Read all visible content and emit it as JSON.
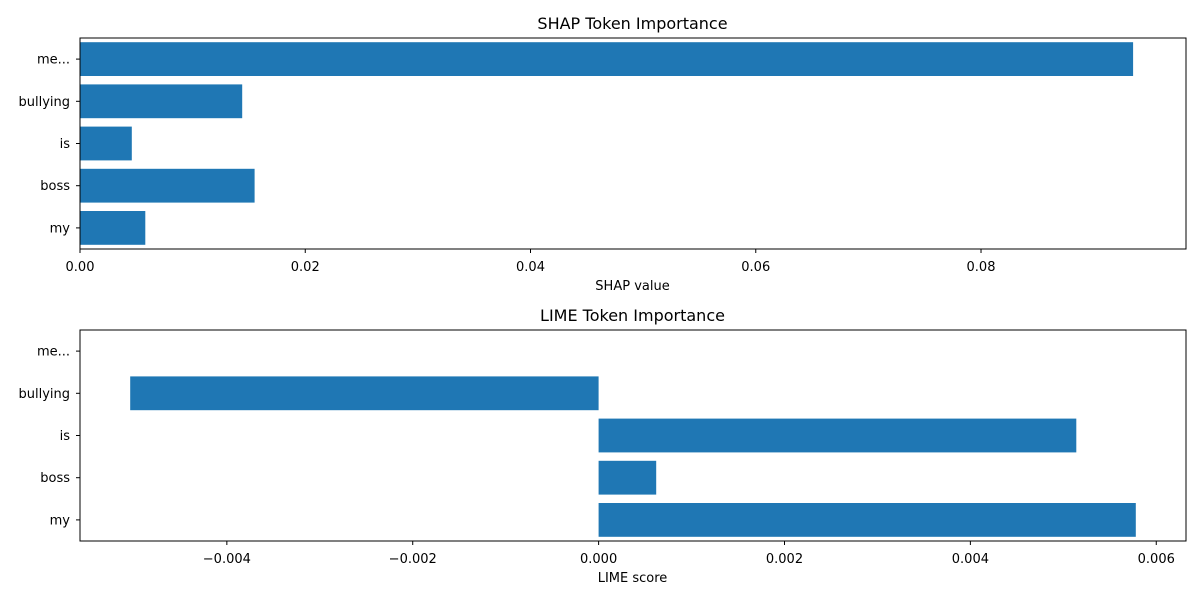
{
  "chart_data": [
    {
      "type": "bar",
      "orientation": "horizontal",
      "title": "SHAP Token Importance",
      "xlabel": "SHAP value",
      "ylabel": "",
      "categories": [
        "my",
        "boss",
        "is",
        "bullying",
        "me..."
      ],
      "values": [
        0.0058,
        0.0155,
        0.0046,
        0.0144,
        0.0935
      ],
      "xlim": [
        0,
        0.0982
      ],
      "xticks": [
        0.0,
        0.02,
        0.04,
        0.06,
        0.08
      ],
      "xtick_labels": [
        "0.00",
        "0.02",
        "0.04",
        "0.06",
        "0.08"
      ],
      "bar_color": "#1f77b4",
      "grid": false
    },
    {
      "type": "bar",
      "orientation": "horizontal",
      "title": "LIME Token Importance",
      "xlabel": "LIME score",
      "ylabel": "",
      "categories": [
        "my",
        "boss",
        "is",
        "bullying",
        "me..."
      ],
      "values": [
        0.00578,
        0.00062,
        0.00514,
        -0.00504,
        0.0
      ],
      "xlim": [
        -0.00558,
        0.00632
      ],
      "xticks": [
        -0.004,
        -0.002,
        0.0,
        0.002,
        0.004,
        0.006
      ],
      "xtick_labels": [
        "−0.004",
        "−0.002",
        "0.000",
        "0.002",
        "0.004",
        "0.006"
      ],
      "bar_color": "#1f77b4",
      "grid": false
    }
  ]
}
